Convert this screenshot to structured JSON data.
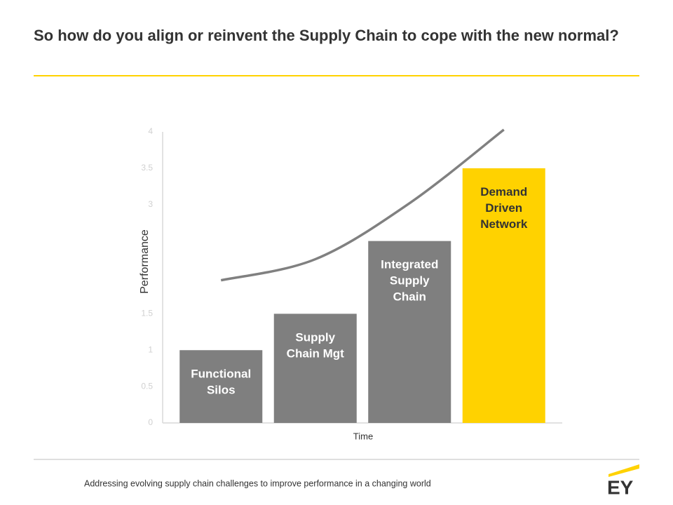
{
  "title": "So how do you align or reinvent the Supply Chain to cope with the new normal?",
  "footer": "Addressing evolving supply chain challenges to improve performance in a changing world",
  "logo": "EY",
  "chart_data": {
    "type": "bar",
    "categories": [
      [
        "Functional",
        "Silos"
      ],
      [
        "Supply",
        "Chain Mgt"
      ],
      [
        "Integrated",
        "Supply",
        "Chain"
      ],
      [
        "Demand",
        "Driven",
        "Network"
      ]
    ],
    "values": [
      1,
      1.5,
      2.5,
      3.5
    ],
    "colors": [
      "#7f7f7f",
      "#7f7f7f",
      "#7f7f7f",
      "#ffd200"
    ],
    "label_colors": [
      "#ffffff",
      "#ffffff",
      "#ffffff",
      "#333333"
    ],
    "line": {
      "color": "#808080",
      "values": [
        1.96,
        2.25,
        3.02,
        4.03
      ]
    },
    "xlabel": "Time",
    "ylabel": "Performance",
    "ylim": [
      0,
      4
    ],
    "yticks": [
      0,
      0.5,
      1,
      1.5,
      3,
      3.5,
      4
    ]
  }
}
